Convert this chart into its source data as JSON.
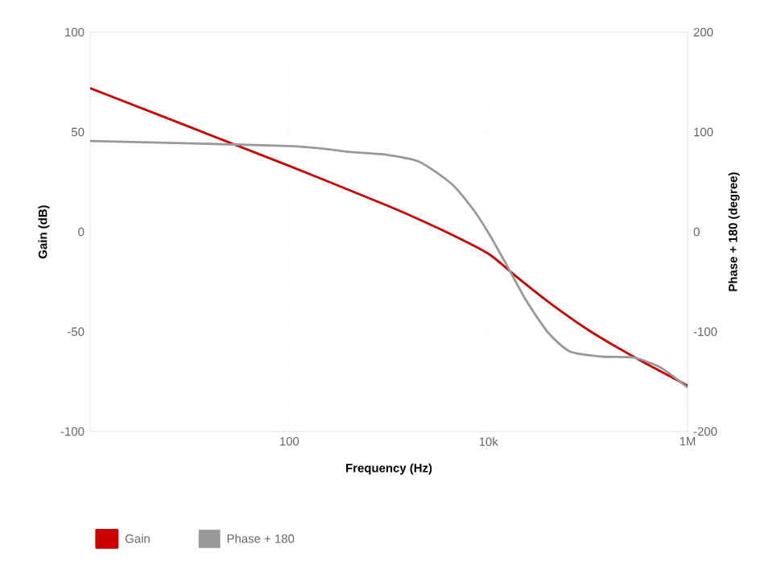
{
  "chart_data": {
    "type": "line",
    "xlabel": "Frequency (Hz)",
    "ylabel": "Gain (dB)",
    "y2label": "Phase + 180 (degree)",
    "log": "x",
    "xlim": [
      1,
      1000000
    ],
    "xticks": [
      {
        "value": 100,
        "label": "100"
      },
      {
        "value": 10000,
        "label": "10k"
      },
      {
        "value": 1000000,
        "label": "1M"
      }
    ],
    "ylim": [
      -100,
      100
    ],
    "yticks": [
      -100,
      -50,
      0,
      50,
      100
    ],
    "y2lim": [
      -200,
      200
    ],
    "y2ticks": [
      -200,
      -100,
      0,
      100,
      200
    ],
    "grid": true,
    "legend": "bottom left",
    "series": [
      {
        "name": "Gain",
        "color": "#cc0000",
        "x": [
          1,
          100,
          980,
          3390,
          10000,
          18600,
          39800,
          107000,
          324000,
          1000000
        ],
        "values": [
          72,
          33,
          13,
          1,
          -11,
          -22,
          -35,
          -50,
          -64,
          -77
        ]
      },
      {
        "name": "Phase + 180",
        "color": "#999999",
        "axis": "y2",
        "x": [
          1,
          100,
          417,
          980,
          2040,
          4270,
          7080,
          10000,
          14800,
          24000,
          39800,
          66100,
          138000,
          288000,
          537000,
          1000000
        ],
        "values": [
          91,
          86,
          80,
          77,
          70,
          48,
          22,
          -1,
          -31,
          -69,
          -101,
          -120,
          -125,
          -126,
          -136,
          -156
        ]
      }
    ]
  }
}
